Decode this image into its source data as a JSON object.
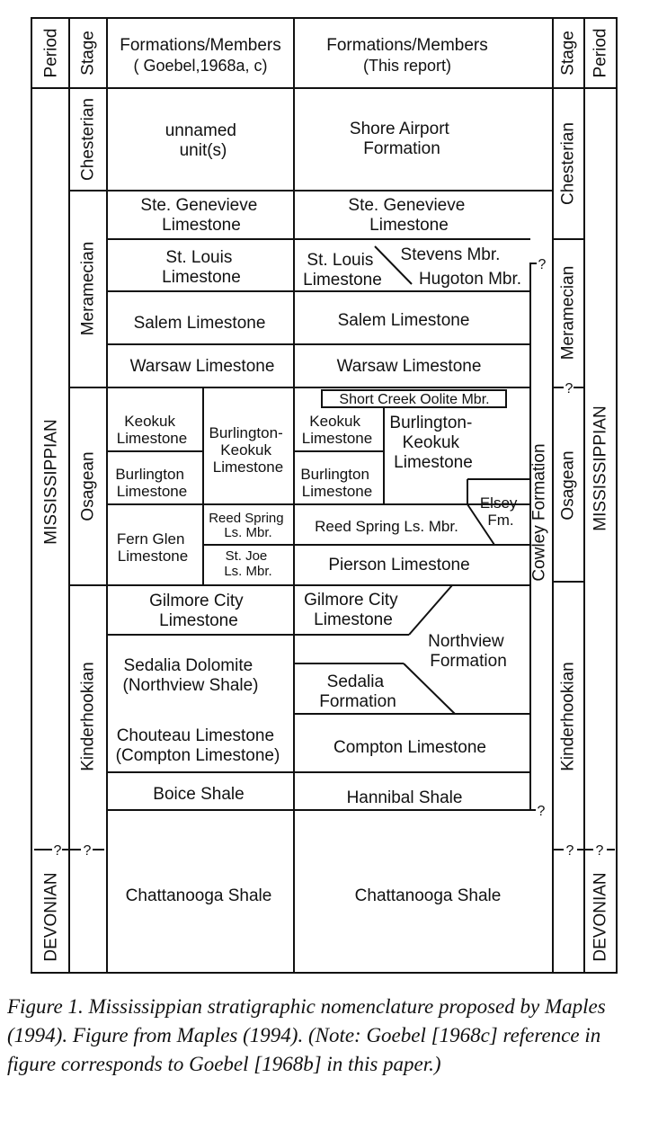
{
  "headers": {
    "period": "Period",
    "stage": "Stage",
    "goebel_title": "Formations/Members",
    "goebel_sub": "( Goebel,1968a, c)",
    "this_title": "Formations/Members",
    "this_sub": "(This report)"
  },
  "periods": {
    "mississippian": "MISSISSIPPIAN",
    "devonian": "DEVONIAN"
  },
  "stages": {
    "chesterian": "Chesterian",
    "meramecian": "Meramecian",
    "osagean": "Osagean",
    "kinderhookian": "Kinderhookian"
  },
  "uncertain": "?",
  "goebel": {
    "unnamed_1": "unnamed",
    "unnamed_2": "unit(s)",
    "ste_gen_1": "Ste. Genevieve",
    "ste_gen_2": "Limestone",
    "st_louis_1": "St. Louis",
    "st_louis_2": "Limestone",
    "salem": "Salem Limestone",
    "warsaw": "Warsaw Limestone",
    "keokuk_1": "Keokuk",
    "keokuk_2": "Limestone",
    "burl_keo_1": "Burlington-",
    "burl_keo_2": "Keokuk",
    "burl_keo_3": "Limestone",
    "burlington_1": "Burlington",
    "burlington_2": "Limestone",
    "fern_glen_1": "Fern Glen",
    "fern_glen_2": "Limestone",
    "reed_spring_1": "Reed Spring",
    "reed_spring_2": "Ls. Mbr.",
    "st_joe_1": "St. Joe",
    "st_joe_2": "Ls. Mbr.",
    "gilmore_1": "Gilmore City",
    "gilmore_2": "Limestone",
    "sedalia_1": "Sedalia Dolomite",
    "sedalia_2": "(Northview Shale)",
    "chouteau_1": "Chouteau Limestone",
    "chouteau_2": "(Compton Limestone)",
    "boice": "Boice Shale",
    "chattanooga": "Chattanooga Shale"
  },
  "this_report": {
    "shore_1": "Shore Airport",
    "shore_2": "Formation",
    "ste_gen_1": "Ste. Genevieve",
    "ste_gen_2": "Limestone",
    "st_louis_1": "St. Louis",
    "st_louis_2": "Limestone",
    "stevens": "Stevens Mbr.",
    "hugoton": "Hugoton Mbr.",
    "salem": "Salem Limestone",
    "warsaw": "Warsaw Limestone",
    "short_creek": "Short Creek Oolite Mbr.",
    "keokuk_1": "Keokuk",
    "keokuk_2": "Limestone",
    "burl_keo_1": "Burlington-",
    "burl_keo_2": "Keokuk",
    "burl_keo_3": "Limestone",
    "burlington_1": "Burlington",
    "burlington_2": "Limestone",
    "elsey_1": "Elsey",
    "elsey_2": "Fm.",
    "reed_spring": "Reed Spring Ls. Mbr.",
    "pierson": "Pierson Limestone",
    "gilmore_1": "Gilmore City",
    "gilmore_2": "Limestone",
    "northview_1": "Northview",
    "northview_2": "Formation",
    "sedalia_1": "Sedalia",
    "sedalia_2": "Formation",
    "compton": "Compton Limestone",
    "hannibal": "Hannibal Shale",
    "chattanooga": "Chattanooga Shale",
    "cowley": "Cowley Formation"
  },
  "caption": "Figure 1. Mississippian stratigraphic nomenclature proposed by Maples (1994). Figure from Maples (1994). (Note: Goebel [1968c] reference in figure corresponds to Goebel [1968b] in this paper.)"
}
